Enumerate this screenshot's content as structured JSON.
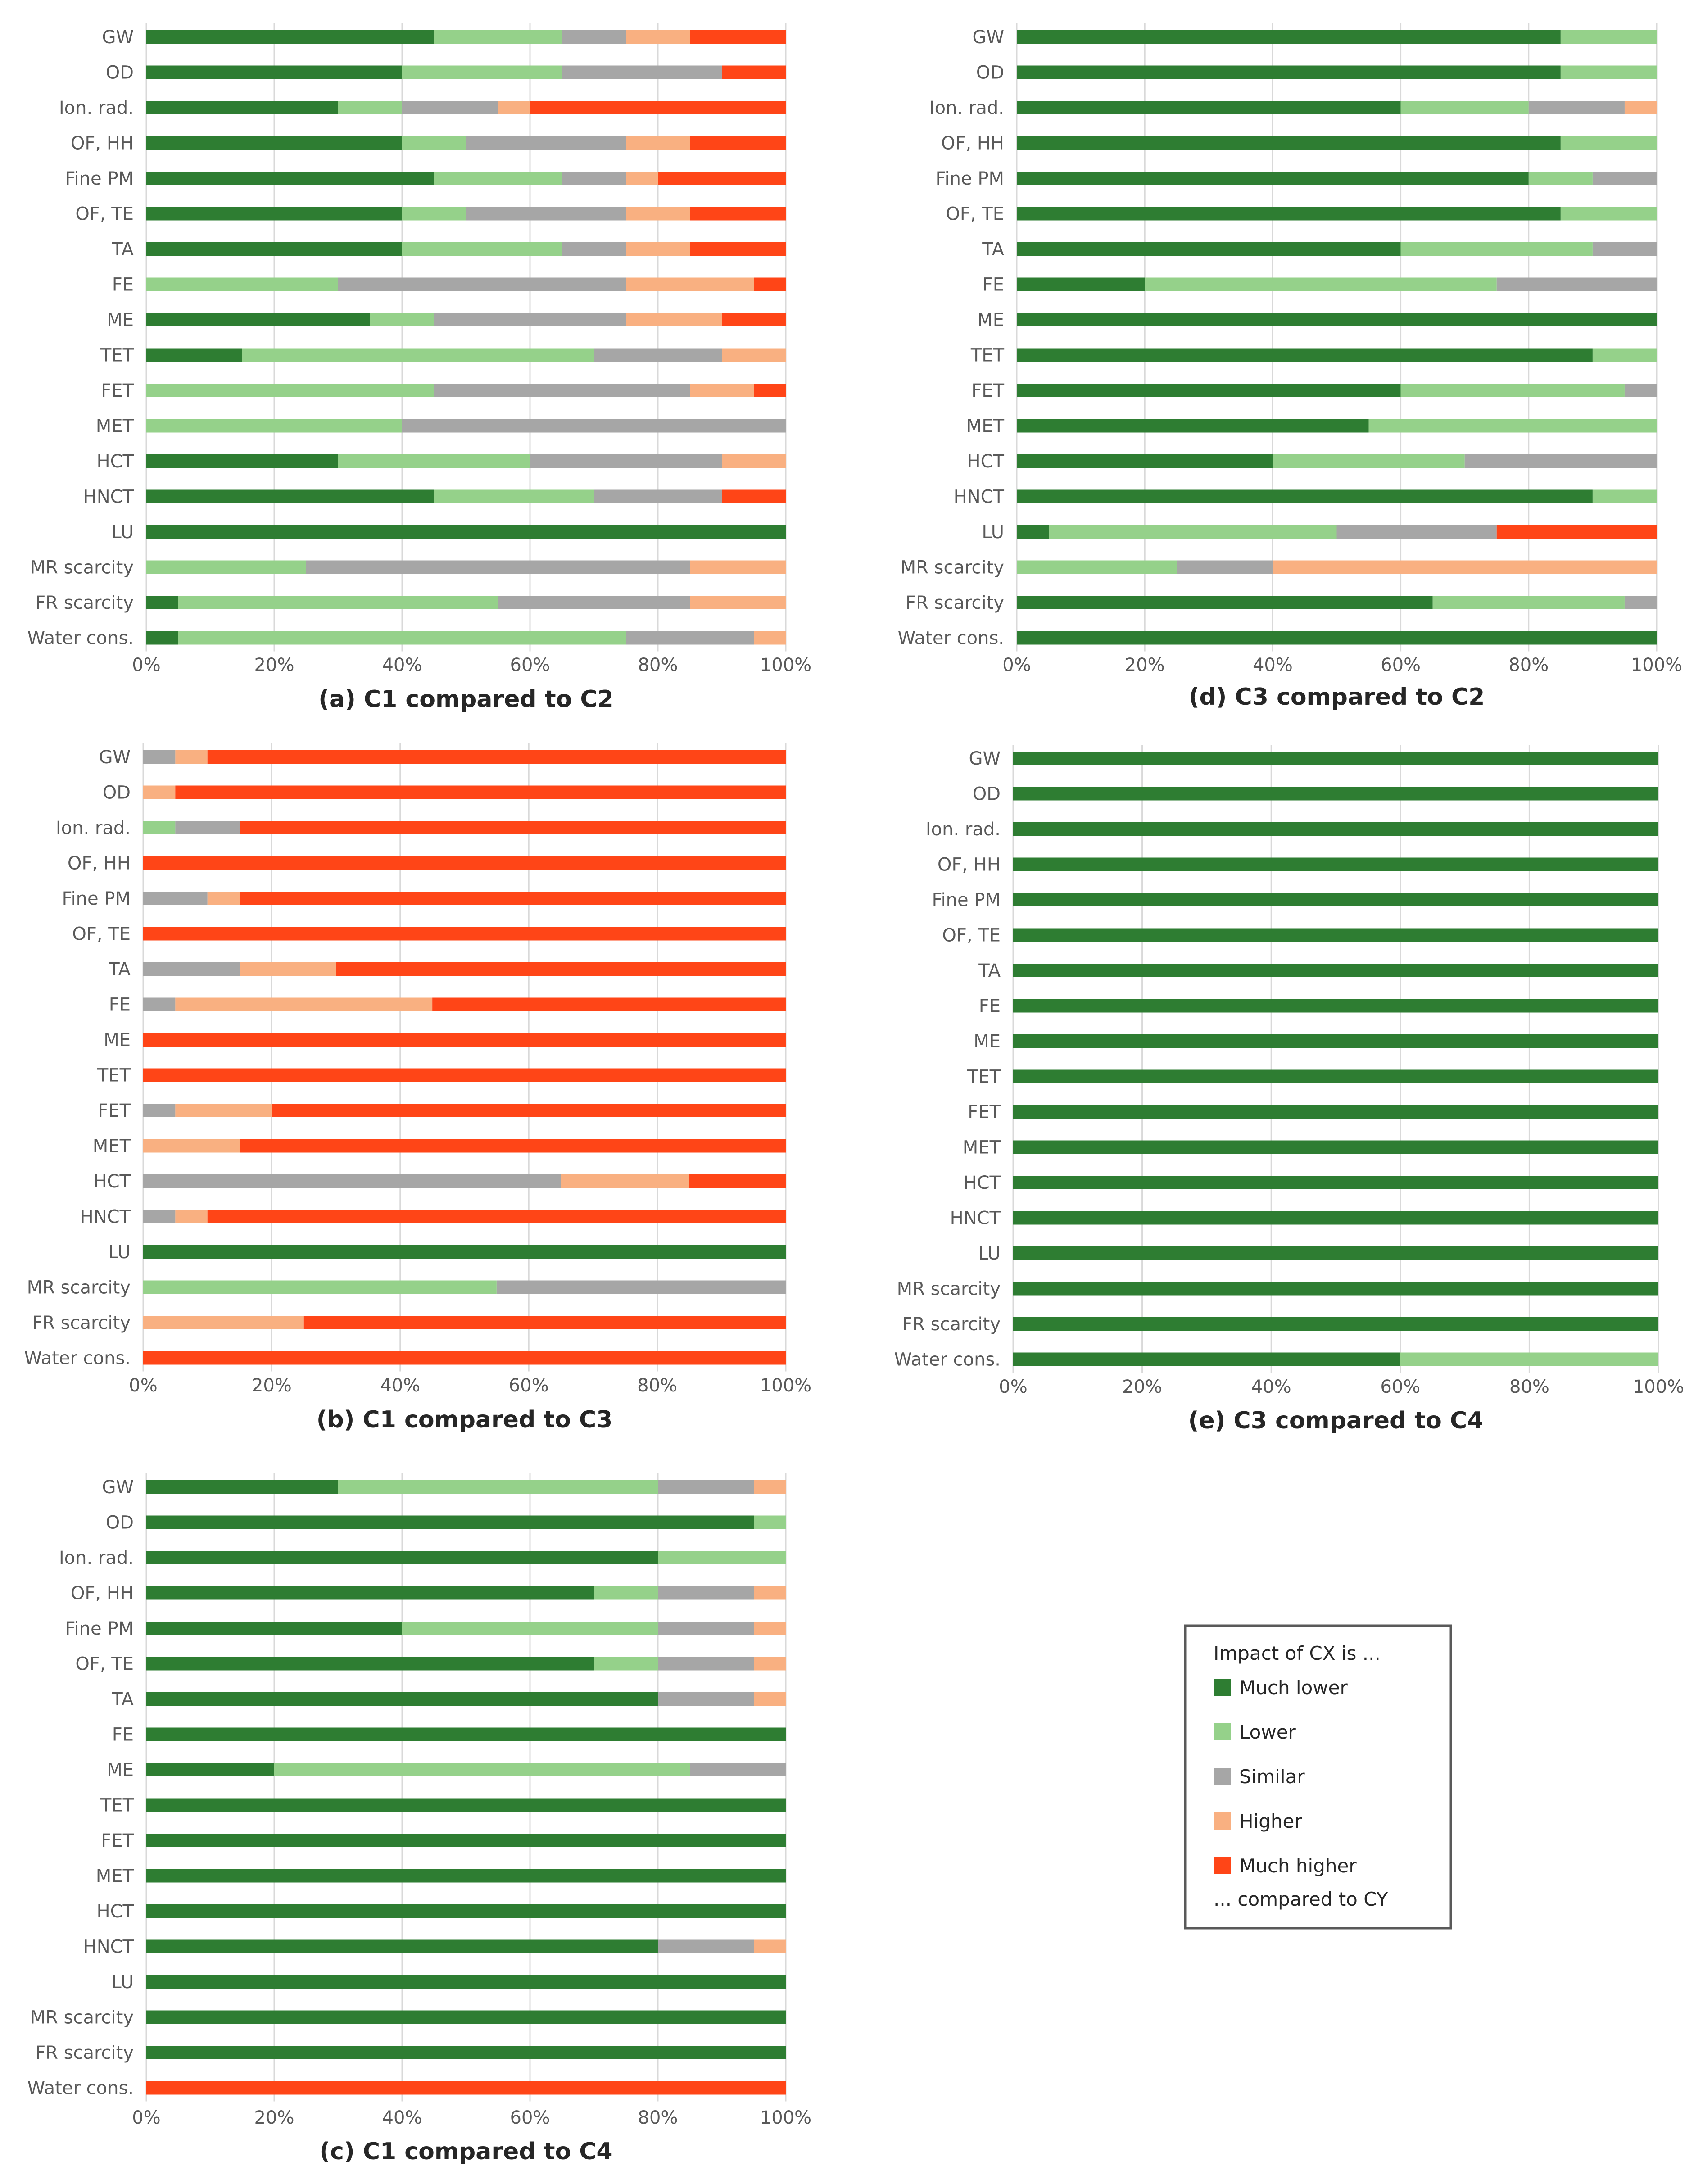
{
  "categories": [
    "GW",
    "OD",
    "Ion. rad.",
    "OF, HH",
    "Fine PM",
    "OF, TE",
    "TA",
    "FE",
    "ME",
    "TET",
    "FET",
    "MET",
    "HCT",
    "HNCT",
    "LU",
    "MR scarcity",
    "FR scarcity",
    "Water cons."
  ],
  "x_ticks": [
    "0%",
    "20%",
    "40%",
    "60%",
    "80%",
    "100%"
  ],
  "legend": {
    "header": "Impact of CX is ...",
    "footer": "... compared to CY",
    "items": [
      {
        "key": "much_lower",
        "label": "Much lower",
        "color": "#2e7d32"
      },
      {
        "key": "lower",
        "label": "Lower",
        "color": "#95d18a"
      },
      {
        "key": "similar",
        "label": "Similar",
        "color": "#a6a6a6"
      },
      {
        "key": "higher",
        "label": "Higher",
        "color": "#f9b081"
      },
      {
        "key": "much_higher",
        "label": "Much higher",
        "color": "#ff4517"
      }
    ]
  },
  "chart_data": [
    {
      "id": "a",
      "type": "bar",
      "stacked": true,
      "orientation": "horizontal",
      "title": "(a) C1 compared to C2",
      "xlim": [
        0,
        100
      ],
      "unit": "%",
      "grid": true,
      "series": [
        {
          "name": "Much lower",
          "values": [
            45,
            40,
            30,
            40,
            45,
            40,
            40,
            0,
            35,
            15,
            0,
            0,
            30,
            45,
            100,
            0,
            5,
            5
          ]
        },
        {
          "name": "Lower",
          "values": [
            20,
            25,
            10,
            10,
            20,
            10,
            25,
            30,
            10,
            55,
            45,
            40,
            30,
            25,
            0,
            25,
            50,
            70
          ]
        },
        {
          "name": "Similar",
          "values": [
            10,
            25,
            15,
            25,
            10,
            25,
            10,
            45,
            30,
            20,
            40,
            60,
            30,
            20,
            0,
            60,
            30,
            20
          ]
        },
        {
          "name": "Higher",
          "values": [
            10,
            0,
            5,
            10,
            5,
            10,
            10,
            20,
            15,
            10,
            10,
            0,
            10,
            0,
            0,
            15,
            15,
            5
          ]
        },
        {
          "name": "Much higher",
          "values": [
            15,
            10,
            40,
            15,
            20,
            15,
            15,
            5,
            10,
            0,
            5,
            0,
            0,
            10,
            0,
            0,
            0,
            0
          ]
        }
      ]
    },
    {
      "id": "b",
      "type": "bar",
      "stacked": true,
      "orientation": "horizontal",
      "title": "(b) C1 compared to C3",
      "xlim": [
        0,
        100
      ],
      "unit": "%",
      "grid": true,
      "series": [
        {
          "name": "Much lower",
          "values": [
            0,
            0,
            0,
            0,
            0,
            0,
            0,
            0,
            0,
            0,
            0,
            0,
            0,
            0,
            100,
            0,
            0,
            0
          ]
        },
        {
          "name": "Lower",
          "values": [
            0,
            0,
            5,
            0,
            0,
            0,
            0,
            0,
            0,
            0,
            0,
            0,
            0,
            0,
            0,
            55,
            0,
            0
          ]
        },
        {
          "name": "Similar",
          "values": [
            5,
            0,
            10,
            0,
            10,
            0,
            15,
            5,
            0,
            0,
            5,
            0,
            65,
            5,
            0,
            45,
            0,
            0
          ]
        },
        {
          "name": "Higher",
          "values": [
            5,
            5,
            0,
            0,
            5,
            0,
            15,
            40,
            0,
            0,
            15,
            15,
            20,
            5,
            0,
            0,
            25,
            0
          ]
        },
        {
          "name": "Much higher",
          "values": [
            90,
            95,
            85,
            100,
            85,
            100,
            70,
            55,
            100,
            100,
            80,
            85,
            15,
            90,
            0,
            0,
            75,
            100
          ]
        }
      ]
    },
    {
      "id": "c",
      "type": "bar",
      "stacked": true,
      "orientation": "horizontal",
      "title": "(c) C1 compared to C4",
      "xlim": [
        0,
        100
      ],
      "unit": "%",
      "grid": true,
      "series": [
        {
          "name": "Much lower",
          "values": [
            30,
            95,
            80,
            70,
            40,
            70,
            80,
            100,
            20,
            100,
            100,
            100,
            100,
            80,
            100,
            100,
            100,
            0
          ]
        },
        {
          "name": "Lower",
          "values": [
            50,
            5,
            20,
            10,
            40,
            10,
            0,
            0,
            65,
            0,
            0,
            0,
            0,
            0,
            0,
            0,
            0,
            0
          ]
        },
        {
          "name": "Similar",
          "values": [
            15,
            0,
            0,
            15,
            15,
            15,
            15,
            0,
            15,
            0,
            0,
            0,
            0,
            15,
            0,
            0,
            0,
            0
          ]
        },
        {
          "name": "Higher",
          "values": [
            5,
            0,
            0,
            5,
            5,
            5,
            5,
            0,
            0,
            0,
            0,
            0,
            0,
            5,
            0,
            0,
            0,
            0
          ]
        },
        {
          "name": "Much higher",
          "values": [
            0,
            0,
            0,
            0,
            0,
            0,
            0,
            0,
            0,
            0,
            0,
            0,
            0,
            0,
            0,
            0,
            0,
            100
          ]
        }
      ]
    },
    {
      "id": "d",
      "type": "bar",
      "stacked": true,
      "orientation": "horizontal",
      "title": "(d) C3 compared to C2",
      "xlim": [
        0,
        100
      ],
      "unit": "%",
      "grid": true,
      "series": [
        {
          "name": "Much lower",
          "values": [
            85,
            85,
            60,
            85,
            80,
            85,
            60,
            20,
            100,
            90,
            60,
            55,
            40,
            90,
            5,
            0,
            65,
            100
          ]
        },
        {
          "name": "Lower",
          "values": [
            15,
            15,
            20,
            15,
            10,
            15,
            30,
            55,
            0,
            10,
            35,
            45,
            30,
            10,
            45,
            25,
            30,
            0
          ]
        },
        {
          "name": "Similar",
          "values": [
            0,
            0,
            15,
            0,
            10,
            0,
            10,
            25,
            0,
            0,
            5,
            0,
            30,
            0,
            25,
            15,
            5,
            0
          ]
        },
        {
          "name": "Higher",
          "values": [
            0,
            0,
            5,
            0,
            0,
            0,
            0,
            0,
            0,
            0,
            0,
            0,
            0,
            0,
            0,
            60,
            0,
            0
          ]
        },
        {
          "name": "Much higher",
          "values": [
            0,
            0,
            0,
            0,
            0,
            0,
            0,
            0,
            0,
            0,
            0,
            0,
            0,
            0,
            25,
            0,
            0,
            0
          ]
        }
      ]
    },
    {
      "id": "e",
      "type": "bar",
      "stacked": true,
      "orientation": "horizontal",
      "title": "(e) C3 compared to C4",
      "xlim": [
        0,
        100
      ],
      "unit": "%",
      "grid": true,
      "series": [
        {
          "name": "Much lower",
          "values": [
            100,
            100,
            100,
            100,
            100,
            100,
            100,
            100,
            100,
            100,
            100,
            100,
            100,
            100,
            100,
            100,
            100,
            60
          ]
        },
        {
          "name": "Lower",
          "values": [
            0,
            0,
            0,
            0,
            0,
            0,
            0,
            0,
            0,
            0,
            0,
            0,
            0,
            0,
            0,
            0,
            0,
            40
          ]
        },
        {
          "name": "Similar",
          "values": [
            0,
            0,
            0,
            0,
            0,
            0,
            0,
            0,
            0,
            0,
            0,
            0,
            0,
            0,
            0,
            0,
            0,
            0
          ]
        },
        {
          "name": "Higher",
          "values": [
            0,
            0,
            0,
            0,
            0,
            0,
            0,
            0,
            0,
            0,
            0,
            0,
            0,
            0,
            0,
            0,
            0,
            0
          ]
        },
        {
          "name": "Much higher",
          "values": [
            0,
            0,
            0,
            0,
            0,
            0,
            0,
            0,
            0,
            0,
            0,
            0,
            0,
            0,
            0,
            0,
            0,
            0
          ]
        }
      ]
    }
  ]
}
